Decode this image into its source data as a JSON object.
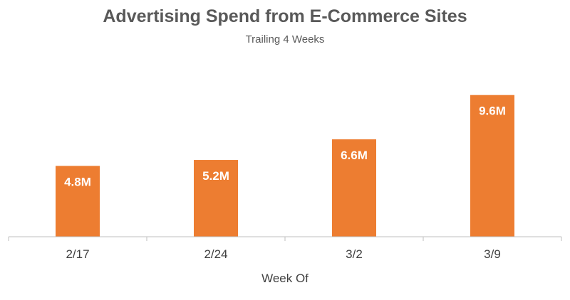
{
  "chart_data": {
    "type": "bar",
    "title": "Advertising Spend from E-Commerce Sites",
    "subtitle": "Trailing 4 Weeks",
    "xlabel": "Week Of",
    "ylabel": "",
    "categories": [
      "2/17",
      "2/24",
      "3/2",
      "3/9"
    ],
    "values": [
      4.8,
      5.2,
      6.6,
      9.6
    ],
    "data_labels": [
      "4.8M",
      "5.2M",
      "6.6M",
      "9.6M"
    ],
    "ylim": [
      0,
      10.5
    ],
    "grid": false,
    "legend": "none",
    "bar_color": "#ED7D31",
    "axis_color": "#BFBFBF"
  }
}
